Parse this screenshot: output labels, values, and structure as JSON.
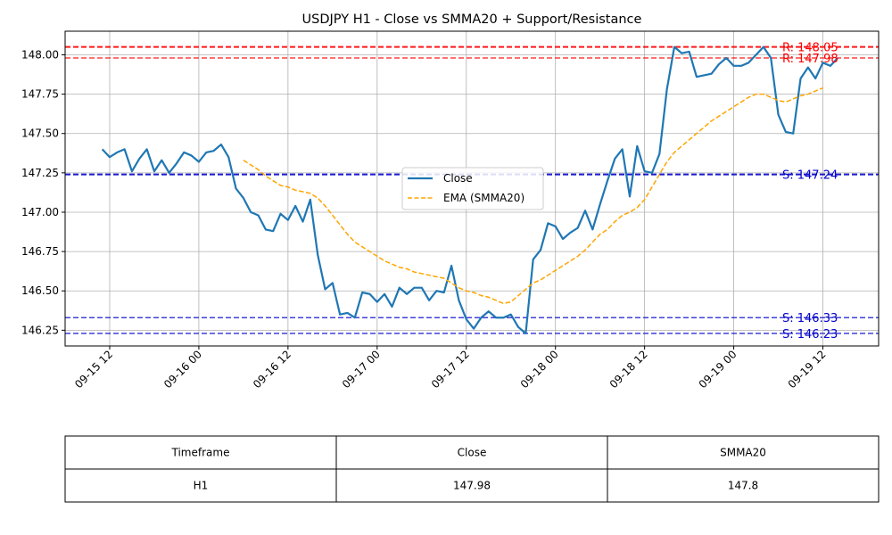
{
  "chart_data": {
    "type": "line",
    "title": "USDJPY H1 - Close vs SMMA20 + Support/Resistance",
    "xlabel": "",
    "ylabel": "",
    "ylim": [
      146.15,
      148.15
    ],
    "yticks": [
      146.25,
      146.5,
      146.75,
      147.0,
      147.25,
      147.5,
      147.75,
      148.0
    ],
    "ytick_labels": [
      "146.25",
      "146.50",
      "146.75",
      "147.00",
      "147.25",
      "147.50",
      "147.75",
      "148.00"
    ],
    "xlim_hours": [
      -6.0,
      103.5
    ],
    "xticks": [
      {
        "hour": 0,
        "label": "09-15 12"
      },
      {
        "hour": 12,
        "label": "09-16 00"
      },
      {
        "hour": 24,
        "label": "09-16 12"
      },
      {
        "hour": 36,
        "label": "09-17 00"
      },
      {
        "hour": 48,
        "label": "09-17 12"
      },
      {
        "hour": 60,
        "label": "09-18 00"
      },
      {
        "hour": 72,
        "label": "09-18 12"
      },
      {
        "hour": 84,
        "label": "09-19 00"
      },
      {
        "hour": 96,
        "label": "09-19 12"
      }
    ],
    "grid": true,
    "legend_position": "center",
    "series": [
      {
        "name": "Close",
        "color": "#1f77b4",
        "style": "solid",
        "start_hour": -1,
        "values": [
          147.4,
          147.35,
          147.38,
          147.4,
          147.26,
          147.34,
          147.4,
          147.26,
          147.33,
          147.25,
          147.31,
          147.38,
          147.36,
          147.32,
          147.38,
          147.39,
          147.43,
          147.35,
          147.15,
          147.09,
          147.0,
          146.98,
          146.89,
          146.88,
          146.99,
          146.95,
          147.04,
          146.94,
          147.08,
          146.73,
          146.51,
          146.55,
          146.35,
          146.36,
          146.33,
          146.49,
          146.48,
          146.43,
          146.48,
          146.4,
          146.52,
          146.48,
          146.52,
          146.52,
          146.44,
          146.5,
          146.49,
          146.66,
          146.44,
          146.32,
          146.26,
          146.33,
          146.37,
          146.33,
          146.33,
          146.35,
          146.27,
          146.23,
          146.7,
          146.76,
          146.93,
          146.91,
          146.83,
          146.87,
          146.9,
          147.01,
          146.89,
          147.05,
          147.2,
          147.34,
          147.4,
          147.1,
          147.42,
          147.26,
          147.25,
          147.37,
          147.78,
          148.05,
          148.01,
          148.02,
          147.86,
          147.87,
          147.88,
          147.94,
          147.98,
          147.93,
          147.93,
          147.95,
          148.0,
          148.05,
          147.98,
          147.62,
          147.51,
          147.5,
          147.85,
          147.92,
          147.85,
          147.95,
          147.93,
          147.98
        ]
      },
      {
        "name": "EMA (SMMA20)",
        "color": "#ffa500",
        "style": "dashed",
        "start_hour": 18,
        "values": [
          147.33,
          147.3,
          147.27,
          147.23,
          147.2,
          147.17,
          147.16,
          147.14,
          147.13,
          147.12,
          147.09,
          147.04,
          146.98,
          146.92,
          146.86,
          146.81,
          146.78,
          146.75,
          146.72,
          146.69,
          146.67,
          146.65,
          146.64,
          146.62,
          146.61,
          146.6,
          146.59,
          146.58,
          146.55,
          146.52,
          146.5,
          146.49,
          146.47,
          146.46,
          146.44,
          146.42,
          146.43,
          146.47,
          146.51,
          146.55,
          146.57,
          146.6,
          146.63,
          146.66,
          146.69,
          146.72,
          146.76,
          146.81,
          146.86,
          146.89,
          146.94,
          146.98,
          147.0,
          147.03,
          147.08,
          147.16,
          147.24,
          147.32,
          147.38,
          147.42,
          147.46,
          147.5,
          147.54,
          147.58,
          147.61,
          147.64,
          147.67,
          147.7,
          147.73,
          147.75,
          147.75,
          147.73,
          147.71,
          147.7,
          147.72,
          147.74,
          147.75,
          147.77,
          147.79
        ]
      }
    ],
    "levels": [
      {
        "kind": "resistance",
        "value": 148.05,
        "label": "R: 148.05",
        "color": "#ff0000",
        "bold": true
      },
      {
        "kind": "resistance",
        "value": 147.98,
        "label": "R: 147.98",
        "color": "#ff0000",
        "bold": false
      },
      {
        "kind": "support",
        "value": 147.24,
        "label": "S: 147.24",
        "color": "#0000cc",
        "bold": true
      },
      {
        "kind": "support",
        "value": 146.33,
        "label": "S: 146.33",
        "color": "#0000cc",
        "bold": false
      },
      {
        "kind": "support",
        "value": 146.23,
        "label": "S: 146.23",
        "color": "#0000cc",
        "bold": false
      }
    ]
  },
  "table": {
    "headers": [
      "Timeframe",
      "Close",
      "SMMA20"
    ],
    "rows": [
      [
        "H1",
        "147.98",
        "147.8"
      ]
    ]
  }
}
